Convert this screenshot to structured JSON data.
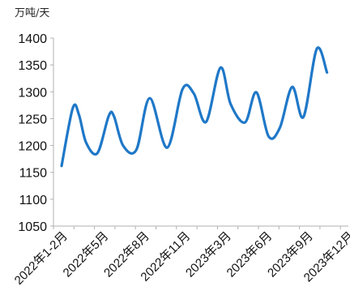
{
  "chart_data": {
    "type": "line",
    "unit": "万吨/天",
    "x_tick_labels": [
      "2022年1-2月",
      "2022年5月",
      "2022年8月",
      "2022年11月",
      "2023年3月",
      "2023年6月",
      "2023年9月",
      "2023年12月"
    ],
    "ylim": [
      1050,
      1400
    ],
    "y_ticks": [
      1050,
      1100,
      1150,
      1200,
      1250,
      1300,
      1350,
      1400
    ],
    "grid": false,
    "series": [
      {
        "color": "#1f78c8",
        "points": [
          {
            "x": 0.0,
            "y": 1162
          },
          {
            "x": 0.55,
            "y": 1270
          },
          {
            "x": 0.85,
            "y": 1257
          },
          {
            "x": 1.2,
            "y": 1205
          },
          {
            "x": 1.75,
            "y": 1186
          },
          {
            "x": 2.3,
            "y": 1255
          },
          {
            "x": 2.55,
            "y": 1255
          },
          {
            "x": 3.0,
            "y": 1200
          },
          {
            "x": 3.65,
            "y": 1192
          },
          {
            "x": 4.3,
            "y": 1288
          },
          {
            "x": 5.15,
            "y": 1196
          },
          {
            "x": 5.9,
            "y": 1305
          },
          {
            "x": 6.45,
            "y": 1297
          },
          {
            "x": 7.05,
            "y": 1244
          },
          {
            "x": 7.75,
            "y": 1345
          },
          {
            "x": 8.25,
            "y": 1277
          },
          {
            "x": 8.95,
            "y": 1243
          },
          {
            "x": 9.5,
            "y": 1299
          },
          {
            "x": 10.1,
            "y": 1217
          },
          {
            "x": 10.65,
            "y": 1233
          },
          {
            "x": 11.25,
            "y": 1309
          },
          {
            "x": 11.8,
            "y": 1253
          },
          {
            "x": 12.45,
            "y": 1380
          },
          {
            "x": 12.95,
            "y": 1336
          }
        ]
      }
    ]
  }
}
